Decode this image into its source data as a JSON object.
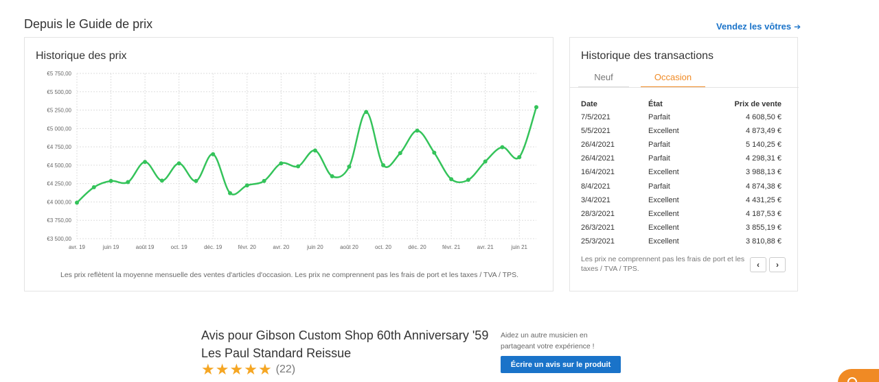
{
  "header": {
    "section_title": "Depuis le Guide de prix",
    "sell_link": "Vendez les vôtres",
    "sell_link_icon": "arrow-right-icon"
  },
  "price_history": {
    "title": "Historique des prix",
    "note": "Les prix reflètent la moyenne mensuelle des ventes d'articles d'occasion. Les prix ne comprennent pas les frais de port et les taxes / TVA / TPS."
  },
  "chart_data": {
    "type": "line",
    "line_color": "#34c35a",
    "grid": true,
    "ylim": [
      3500,
      5750
    ],
    "yticks": [
      {
        "value": 5750,
        "label": "€5 750,00"
      },
      {
        "value": 5500,
        "label": "€5 500,00"
      },
      {
        "value": 5250,
        "label": "€5 250,00"
      },
      {
        "value": 5000,
        "label": "€5 000,00"
      },
      {
        "value": 4750,
        "label": "€4 750,00"
      },
      {
        "value": 4500,
        "label": "€4 500,00"
      },
      {
        "value": 4250,
        "label": "€4 250,00"
      },
      {
        "value": 4000,
        "label": "€4 000,00"
      },
      {
        "value": 3750,
        "label": "€3 750,00"
      },
      {
        "value": 3500,
        "label": "€3 500,00"
      }
    ],
    "xticks": [
      {
        "index": 0,
        "label": "avr. 19"
      },
      {
        "index": 2,
        "label": "juin 19"
      },
      {
        "index": 4,
        "label": "août 19"
      },
      {
        "index": 6,
        "label": "oct. 19"
      },
      {
        "index": 8,
        "label": "déc. 19"
      },
      {
        "index": 10,
        "label": "févr. 20"
      },
      {
        "index": 12,
        "label": "avr. 20"
      },
      {
        "index": 14,
        "label": "juin 20"
      },
      {
        "index": 16,
        "label": "août 20"
      },
      {
        "index": 18,
        "label": "oct. 20"
      },
      {
        "index": 20,
        "label": "déc. 20"
      },
      {
        "index": 22,
        "label": "févr. 21"
      },
      {
        "index": 24,
        "label": "avr. 21"
      },
      {
        "index": 26,
        "label": "juin 21"
      }
    ],
    "values": [
      3990,
      4200,
      4285,
      4270,
      4545,
      4290,
      4525,
      4285,
      4650,
      4120,
      4225,
      4285,
      4525,
      4485,
      4700,
      4350,
      4480,
      5225,
      4500,
      4665,
      4970,
      4670,
      4310,
      4300,
      4550,
      4745,
      4610,
      5290
    ]
  },
  "transactions": {
    "title": "Historique des transactions",
    "tabs": [
      {
        "label": "Neuf"
      },
      {
        "label": "Occasion"
      }
    ],
    "columns": {
      "date": "Date",
      "state": "État",
      "price": "Prix de vente"
    },
    "rows": [
      {
        "date": "7/5/2021",
        "state": "Parfait",
        "price": "4 608,50 €"
      },
      {
        "date": "5/5/2021",
        "state": "Excellent",
        "price": "4 873,49 €"
      },
      {
        "date": "26/4/2021",
        "state": "Parfait",
        "price": "5 140,25 €"
      },
      {
        "date": "26/4/2021",
        "state": "Parfait",
        "price": "4 298,31 €"
      },
      {
        "date": "16/4/2021",
        "state": "Excellent",
        "price": "3 988,13 €"
      },
      {
        "date": "8/4/2021",
        "state": "Parfait",
        "price": "4 874,38 €"
      },
      {
        "date": "3/4/2021",
        "state": "Excellent",
        "price": "4 431,25 €"
      },
      {
        "date": "28/3/2021",
        "state": "Excellent",
        "price": "4 187,53 €"
      },
      {
        "date": "26/3/2021",
        "state": "Excellent",
        "price": "3 855,19 €"
      },
      {
        "date": "25/3/2021",
        "state": "Excellent",
        "price": "3 810,88 €"
      }
    ],
    "note": "Les prix ne comprennent pas les frais de port et les taxes / TVA / TPS.",
    "prev_icon": "chevron-left-icon",
    "next_icon": "chevron-right-icon"
  },
  "reviews": {
    "title": "Avis pour Gibson Custom Shop 60th Anniversary '59 Les Paul Standard Reissue",
    "rating": 5,
    "count": "(22)",
    "star_icon": "star-icon",
    "help_text": "Aidez un autre musicien en partageant votre expérience !",
    "write_button": "Écrire un avis sur le produit"
  },
  "colors": {
    "accent_blue": "#1a73c9",
    "accent_orange": "#f08a24",
    "line_green": "#34c35a",
    "star": "#f5a623"
  }
}
